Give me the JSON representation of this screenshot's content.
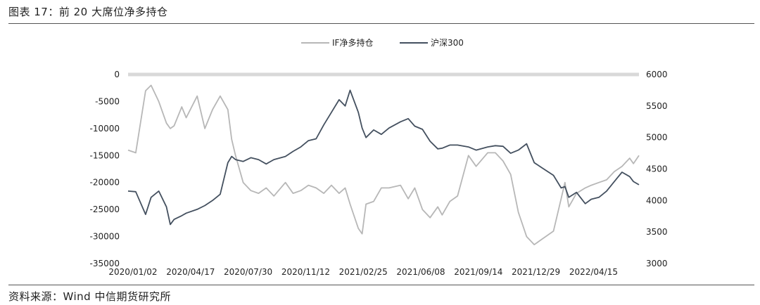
{
  "figure": {
    "title": "图表 17：前 20 大席位净多持仓",
    "source": "资料来源：Wind  中信期货研究所"
  },
  "colors": {
    "if_net_long": "#b7b7b7",
    "csi300": "#44505f",
    "zero_line": "#d9d9d9"
  },
  "chart_data": {
    "type": "line",
    "title": "",
    "legend_position": "top-center",
    "grid": false,
    "x_tick_labels": [
      "2020/01/02",
      "2020/04/17",
      "2020/07/30",
      "2020/11/12",
      "2021/02/25",
      "2021/06/08",
      "2021/09/14",
      "2021/12/29",
      "2022/04/15"
    ],
    "x": [
      "2020-01-02",
      "2020-01-16",
      "2020-02-03",
      "2020-02-13",
      "2020-02-27",
      "2020-03-12",
      "2020-03-19",
      "2020-03-26",
      "2020-04-09",
      "2020-04-17",
      "2020-05-07",
      "2020-05-21",
      "2020-06-04",
      "2020-06-18",
      "2020-07-02",
      "2020-07-09",
      "2020-07-16",
      "2020-07-30",
      "2020-08-13",
      "2020-08-27",
      "2020-09-10",
      "2020-09-24",
      "2020-10-15",
      "2020-10-29",
      "2020-11-12",
      "2020-11-26",
      "2020-12-10",
      "2020-12-24",
      "2021-01-07",
      "2021-01-21",
      "2021-02-01",
      "2021-02-10",
      "2021-02-25",
      "2021-03-04",
      "2021-03-11",
      "2021-03-25",
      "2021-04-08",
      "2021-04-22",
      "2021-05-13",
      "2021-05-27",
      "2021-06-08",
      "2021-06-22",
      "2021-07-06",
      "2021-07-20",
      "2021-07-28",
      "2021-08-11",
      "2021-08-25",
      "2021-09-14",
      "2021-09-28",
      "2021-10-19",
      "2021-11-02",
      "2021-11-16",
      "2021-11-30",
      "2021-12-14",
      "2021-12-29",
      "2022-01-12",
      "2022-01-26",
      "2022-02-16",
      "2022-03-02",
      "2022-03-09",
      "2022-03-16",
      "2022-03-30",
      "2022-04-15",
      "2022-04-26",
      "2022-05-10",
      "2022-05-24",
      "2022-06-07",
      "2022-06-21",
      "2022-07-05",
      "2022-07-12",
      "2022-07-22"
    ],
    "y_left": {
      "label": "",
      "min": -35000,
      "max": 0,
      "ticks": [
        0,
        -5000,
        -10000,
        -15000,
        -20000,
        -25000,
        -30000,
        -35000
      ]
    },
    "y_right": {
      "label": "",
      "min": 3000,
      "max": 6000,
      "ticks": [
        6000,
        5500,
        5000,
        4500,
        4000,
        3500,
        3000
      ]
    },
    "series": [
      {
        "name": "IF净多持仓",
        "axis": "left",
        "color": "#b7b7b7",
        "values": [
          -14000,
          -14500,
          -3000,
          -2000,
          -5000,
          -9000,
          -10000,
          -9500,
          -6000,
          -8000,
          -4000,
          -10000,
          -6500,
          -4000,
          -6500,
          -12000,
          -15000,
          -20000,
          -21500,
          -22000,
          -21000,
          -22500,
          -20000,
          -22000,
          -21500,
          -20500,
          -21000,
          -22000,
          -20500,
          -22000,
          -21000,
          -24000,
          -28500,
          -29500,
          -24000,
          -23500,
          -21000,
          -21000,
          -20500,
          -23000,
          -21000,
          -25000,
          -26500,
          -24500,
          -26000,
          -23500,
          -22500,
          -15000,
          -17000,
          -14500,
          -14500,
          -16000,
          -18500,
          -25500,
          -30000,
          -31500,
          -30500,
          -29000,
          -23000,
          -20000,
          -24500,
          -22000,
          -21000,
          -20500,
          -20000,
          -19500,
          -18000,
          -17000,
          -15500,
          -16500,
          -15000
        ]
      },
      {
        "name": "沪深300",
        "axis": "right",
        "color": "#44505f",
        "values": [
          4150,
          4140,
          3780,
          4050,
          4150,
          3900,
          3620,
          3700,
          3760,
          3800,
          3860,
          3920,
          4000,
          4100,
          4600,
          4700,
          4650,
          4620,
          4680,
          4650,
          4580,
          4650,
          4700,
          4780,
          4850,
          4950,
          4980,
          5200,
          5400,
          5600,
          5500,
          5750,
          5400,
          5150,
          5000,
          5120,
          5050,
          5150,
          5250,
          5300,
          5180,
          5130,
          4940,
          4820,
          4830,
          4880,
          4880,
          4850,
          4800,
          4850,
          4870,
          4860,
          4750,
          4800,
          4900,
          4600,
          4520,
          4400,
          4200,
          4220,
          4050,
          4130,
          3950,
          4020,
          4050,
          4150,
          4300,
          4450,
          4380,
          4300,
          4250
        ]
      }
    ]
  }
}
